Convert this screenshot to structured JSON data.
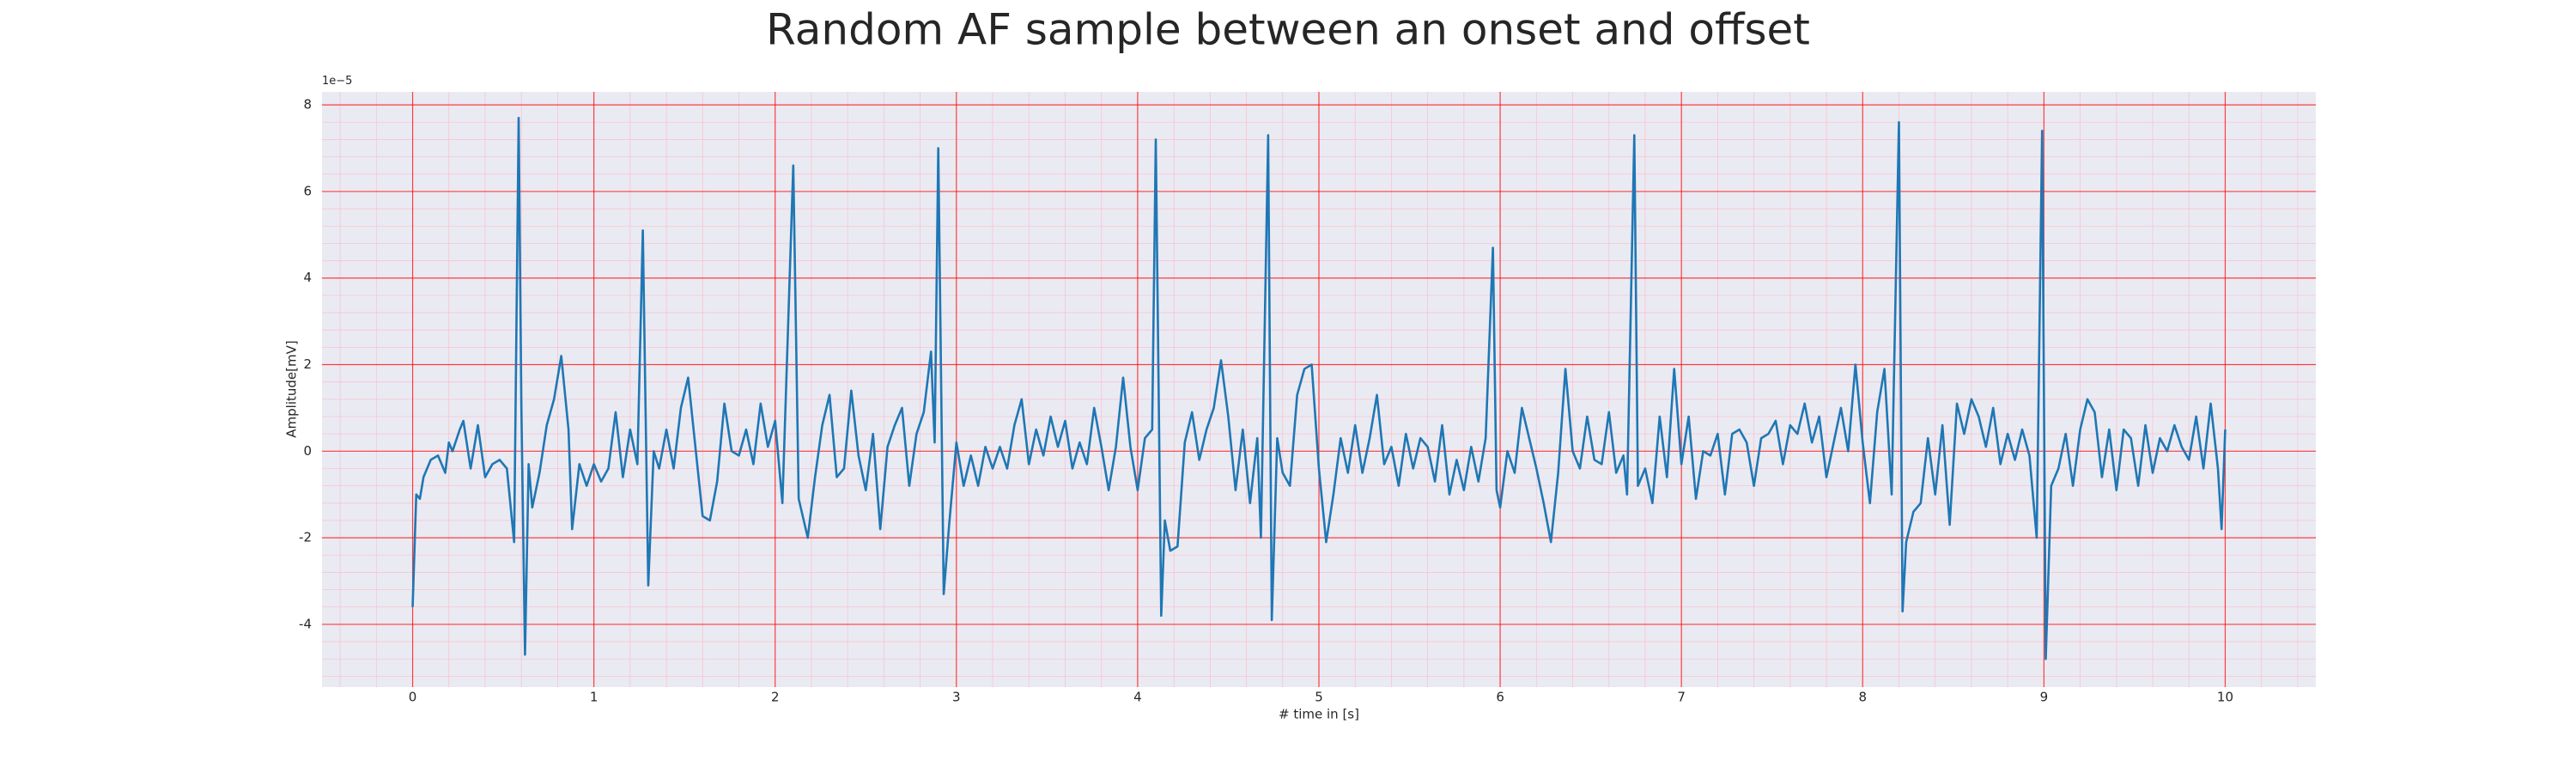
{
  "chart_data": {
    "type": "line",
    "title": "Random AF sample between an onset and offset",
    "xlabel": "# time in [s]",
    "ylabel": "Amplitude[mV]",
    "y_offset_label": "1e−5",
    "xlim": [
      -0.5,
      10.5
    ],
    "ylim": [
      -5.45,
      8.3
    ],
    "xticks": [
      0,
      1,
      2,
      3,
      4,
      5,
      6,
      7,
      8,
      9,
      10
    ],
    "yticks": [
      -4,
      -2,
      0,
      2,
      4,
      6,
      8
    ],
    "grid": true,
    "minor_grid": true,
    "series": [
      {
        "color": "#1f77b4",
        "x": [
          0,
          0.02,
          0.04,
          0.06,
          0.1,
          0.14,
          0.18,
          0.2,
          0.22,
          0.26,
          0.28,
          0.32,
          0.36,
          0.4,
          0.44,
          0.48,
          0.52,
          0.56,
          0.585,
          0.6,
          0.62,
          0.64,
          0.66,
          0.7,
          0.74,
          0.78,
          0.82,
          0.86,
          0.88,
          0.92,
          0.96,
          1.0,
          1.04,
          1.08,
          1.12,
          1.16,
          1.2,
          1.24,
          1.27,
          1.3,
          1.33,
          1.36,
          1.4,
          1.44,
          1.48,
          1.52,
          1.56,
          1.6,
          1.64,
          1.68,
          1.72,
          1.76,
          1.8,
          1.84,
          1.88,
          1.92,
          1.96,
          2.0,
          2.04,
          2.1,
          2.13,
          2.18,
          2.22,
          2.26,
          2.3,
          2.34,
          2.38,
          2.42,
          2.46,
          2.5,
          2.54,
          2.58,
          2.62,
          2.66,
          2.7,
          2.74,
          2.78,
          2.82,
          2.86,
          2.88,
          2.9,
          2.93,
          2.96,
          3.0,
          3.04,
          3.08,
          3.12,
          3.16,
          3.2,
          3.24,
          3.28,
          3.32,
          3.36,
          3.4,
          3.44,
          3.48,
          3.52,
          3.56,
          3.6,
          3.64,
          3.68,
          3.72,
          3.76,
          3.8,
          3.84,
          3.88,
          3.92,
          3.96,
          4.0,
          4.04,
          4.08,
          4.1,
          4.13,
          4.15,
          4.18,
          4.22,
          4.26,
          4.3,
          4.34,
          4.38,
          4.42,
          4.46,
          4.5,
          4.54,
          4.58,
          4.62,
          4.66,
          4.68,
          4.72,
          4.74,
          4.77,
          4.8,
          4.84,
          4.88,
          4.92,
          4.96,
          5.0,
          5.04,
          5.08,
          5.12,
          5.16,
          5.2,
          5.24,
          5.28,
          5.32,
          5.36,
          5.4,
          5.44,
          5.48,
          5.52,
          5.56,
          5.6,
          5.64,
          5.68,
          5.72,
          5.76,
          5.8,
          5.84,
          5.88,
          5.92,
          5.96,
          5.98,
          6.0,
          6.04,
          6.08,
          6.12,
          6.16,
          6.2,
          6.24,
          6.28,
          6.32,
          6.36,
          6.4,
          6.44,
          6.48,
          6.52,
          6.56,
          6.6,
          6.64,
          6.68,
          6.7,
          6.74,
          6.76,
          6.8,
          6.84,
          6.88,
          6.92,
          6.96,
          7.0,
          7.04,
          7.08,
          7.12,
          7.16,
          7.2,
          7.24,
          7.28,
          7.32,
          7.36,
          7.4,
          7.44,
          7.48,
          7.52,
          7.56,
          7.6,
          7.64,
          7.68,
          7.72,
          7.76,
          7.8,
          7.84,
          7.88,
          7.92,
          7.96,
          8.0,
          8.04,
          8.08,
          8.12,
          8.16,
          8.2,
          8.22,
          8.24,
          8.28,
          8.32,
          8.36,
          8.4,
          8.44,
          8.48,
          8.52,
          8.56,
          8.6,
          8.64,
          8.68,
          8.72,
          8.76,
          8.8,
          8.84,
          8.88,
          8.92,
          8.96,
          8.99,
          9.01,
          9.04,
          9.08,
          9.12,
          9.16,
          9.2,
          9.24,
          9.28,
          9.32,
          9.36,
          9.4,
          9.44,
          9.48,
          9.52,
          9.56,
          9.6,
          9.64,
          9.68,
          9.72,
          9.76,
          9.8,
          9.84,
          9.88,
          9.92,
          9.96,
          9.98,
          10.0
        ],
        "values": [
          -3.6,
          -1.0,
          -1.1,
          -0.6,
          -0.2,
          -0.1,
          -0.5,
          0.2,
          0.0,
          0.5,
          0.7,
          -0.4,
          0.6,
          -0.6,
          -0.3,
          -0.2,
          -0.4,
          -2.1,
          7.7,
          1.0,
          -4.7,
          -0.3,
          -1.3,
          -0.5,
          0.6,
          1.2,
          2.2,
          0.5,
          -1.8,
          -0.3,
          -0.8,
          -0.3,
          -0.7,
          -0.4,
          0.9,
          -0.6,
          0.5,
          -0.3,
          5.1,
          -3.1,
          0.0,
          -0.4,
          0.5,
          -0.4,
          1.0,
          1.7,
          0.1,
          -1.5,
          -1.6,
          -0.7,
          1.1,
          0.0,
          -0.1,
          0.5,
          -0.3,
          1.1,
          0.1,
          0.7,
          -1.2,
          6.6,
          -1.1,
          -2.0,
          -0.6,
          0.6,
          1.3,
          -0.6,
          -0.4,
          1.4,
          -0.1,
          -0.9,
          0.4,
          -1.8,
          0.1,
          0.6,
          1.0,
          -0.8,
          0.4,
          0.9,
          2.3,
          0.2,
          7.0,
          -3.3,
          -1.7,
          0.2,
          -0.8,
          -0.1,
          -0.8,
          0.1,
          -0.4,
          0.1,
          -0.4,
          0.6,
          1.2,
          -0.3,
          0.5,
          -0.1,
          0.8,
          0.1,
          0.7,
          -0.4,
          0.2,
          -0.3,
          1.0,
          0.1,
          -0.9,
          0.1,
          1.7,
          0.1,
          -0.9,
          0.3,
          0.5,
          7.2,
          -3.8,
          -1.6,
          -2.3,
          -2.2,
          0.2,
          0.9,
          -0.2,
          0.5,
          1.0,
          2.1,
          0.8,
          -0.9,
          0.5,
          -1.2,
          0.3,
          -2.0,
          7.3,
          -3.9,
          0.3,
          -0.5,
          -0.8,
          1.3,
          1.9,
          2.0,
          -0.4,
          -2.1,
          -1.0,
          0.3,
          -0.5,
          0.6,
          -0.5,
          0.3,
          1.3,
          -0.3,
          0.1,
          -0.8,
          0.4,
          -0.4,
          0.3,
          0.1,
          -0.7,
          0.6,
          -1.0,
          -0.2,
          -0.9,
          0.1,
          -0.7,
          0.3,
          4.7,
          -0.9,
          -1.3,
          0.0,
          -0.5,
          1.0,
          0.3,
          -0.4,
          -1.2,
          -2.1,
          -0.5,
          1.9,
          0.0,
          -0.4,
          0.8,
          -0.2,
          -0.3,
          0.9,
          -0.5,
          -0.1,
          -1.0,
          7.3,
          -0.8,
          -0.4,
          -1.2,
          0.8,
          -0.6,
          1.9,
          -0.3,
          0.8,
          -1.1,
          0.0,
          -0.1,
          0.4,
          -1.0,
          0.4,
          0.5,
          0.2,
          -0.8,
          0.3,
          0.4,
          0.7,
          -0.3,
          0.6,
          0.4,
          1.1,
          0.2,
          0.8,
          -0.6,
          0.2,
          1.0,
          0.0,
          2.0,
          0.2,
          -1.2,
          0.9,
          1.9,
          -1.0,
          7.6,
          -3.7,
          -2.1,
          -1.4,
          -1.2,
          0.3,
          -1.0,
          0.6,
          -1.7,
          1.1,
          0.4,
          1.2,
          0.8,
          0.1,
          1.0,
          -0.3,
          0.4,
          -0.2,
          0.5,
          -0.1,
          -2.0,
          7.4,
          -4.8,
          -0.8,
          -0.4,
          0.4,
          -0.8,
          0.5,
          1.2,
          0.9,
          -0.6,
          0.5,
          -0.9,
          0.5,
          0.3,
          -0.8,
          0.6,
          -0.5,
          0.3,
          0.0,
          0.6,
          0.1,
          -0.2,
          0.8,
          -0.4,
          1.1,
          -0.4,
          -1.8,
          0.5
        ]
      }
    ]
  }
}
